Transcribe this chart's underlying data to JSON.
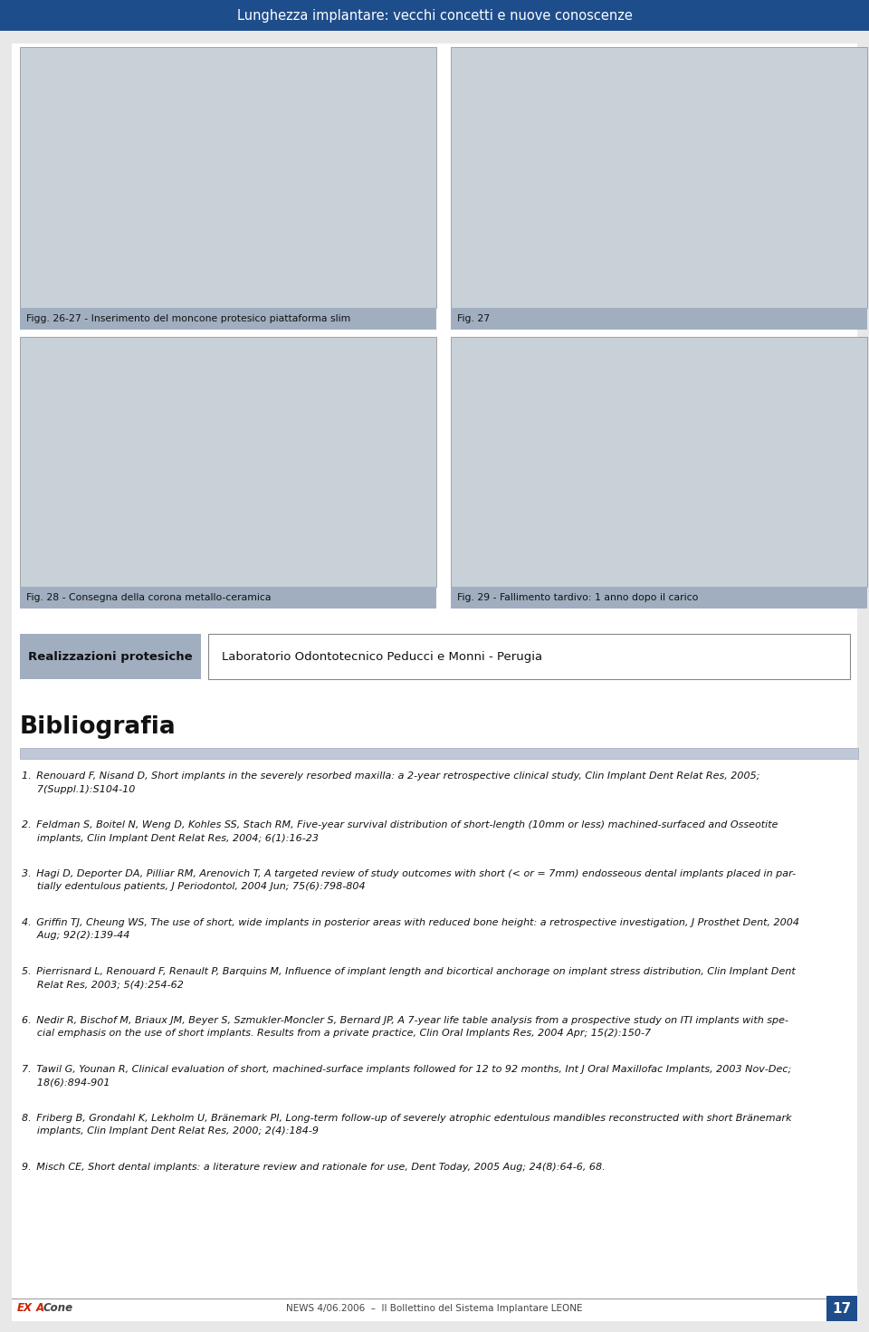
{
  "page_bg": "#e8e8e8",
  "header_bg": "#1e4d8c",
  "header_text": "Lunghezza implantare: vecchi concetti e nuove conoscenze",
  "header_text_color": "#ffffff",
  "fig_caption_bg": "#a0aec0",
  "fig_caption_color": "#111111",
  "fig26_caption": "Figg. 26-27 - Inserimento del moncone protesico piattaforma slim",
  "fig27_caption": "Fig. 27",
  "fig28_caption": "Fig. 28 - Consegna della corona metallo-ceramica",
  "fig29_caption": "Fig. 29 - Fallimento tardivo: 1 anno dopo il carico",
  "realizzazioni_text": "Realizzazioni protesiche",
  "realizzazioni_bg": "#a0aec0",
  "realizzazioni_right": "Laboratorio Odontotecnico Peducci e Monni - Perugia",
  "section_line_color": "#1e4d8c",
  "bibliografia_title": "Bibliografia",
  "bibliography": [
    "1. Renouard F, Nisand D, Short implants in the severely resorbed maxilla: a 2-year retrospective clinical study, Clin Implant Dent Relat Res, 2005;\n   7(Suppl.1):S104-10",
    "2. Feldman S, Boitel N, Weng D, Kohles SS, Stach RM, Five-year survival distribution of short-length (10mm or less) machined-surfaced and Osseotite\n   implants, Clin Implant Dent Relat Res, 2004; 6(1):16-23",
    "3. Hagi D, Deporter DA, Pilliar RM, Arenovich T, A targeted review of study outcomes with short (< or = 7mm) endosseous dental implants placed in par-\n   tially edentulous patients, J Periodontol, 2004 Jun; 75(6):798-804",
    "4. Griffin TJ, Cheung WS, The use of short, wide implants in posterior areas with reduced bone height: a retrospective investigation, J Prosthet Dent, 2004\n   Aug; 92(2):139-44",
    "5. Pierrisnard L, Renouard F, Renault P, Barquins M, Influence of implant length and bicortical anchorage on implant stress distribution, Clin Implant Dent\n   Relat Res, 2003; 5(4):254-62",
    "6. Nedir R, Bischof M, Briaux JM, Beyer S, Szmukler-Moncler S, Bernard JP, A 7-year life table analysis from a prospective study on ITI implants with spe-\n   cial emphasis on the use of short implants. Results from a private practice, Clin Oral Implants Res, 2004 Apr; 15(2):150-7",
    "7. Tawil G, Younan R, Clinical evaluation of short, machined-surface implants followed for 12 to 92 months, Int J Oral Maxillofac Implants, 2003 Nov-Dec;\n   18(6):894-901",
    "8. Friberg B, Grondahl K, Lekholm U, Bränemark PI, Long-term follow-up of severely atrophic edentulous mandibles reconstructed with short Bränemark\n   implants, Clin Implant Dent Relat Res, 2000; 2(4):184-9",
    "9. Misch CE, Short dental implants: a literature review and rationale for use, Dent Today, 2005 Aug; 24(8):64-6, 68."
  ],
  "footer_news": "NEWS 4/06.2006",
  "footer_dash": "–",
  "footer_text": "Il Bollettino del Sistema Implantare LEONE",
  "footer_page": "17",
  "footer_logo_ex": "EX",
  "footer_logo_a": "A",
  "footer_logo_cone": "Cone"
}
